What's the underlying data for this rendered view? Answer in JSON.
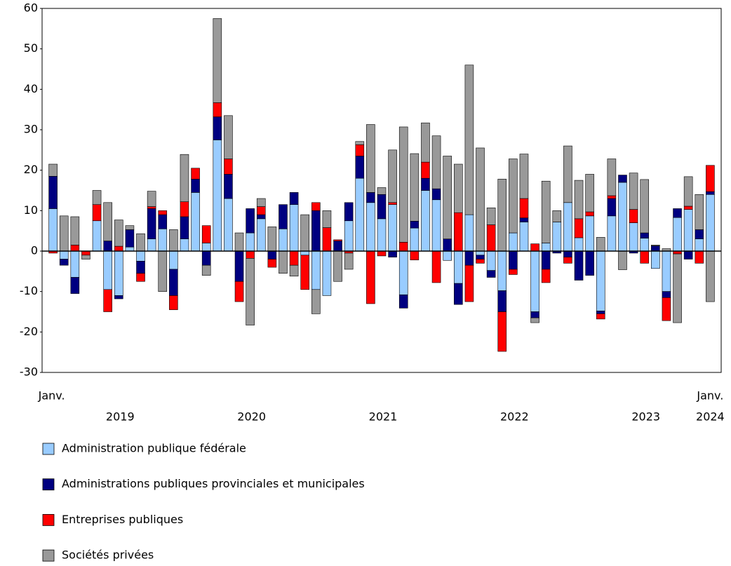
{
  "chart_data": {
    "type": "bar",
    "stacked": true,
    "categories": [
      "Janv.",
      null,
      null,
      null,
      null,
      null,
      null,
      null,
      null,
      null,
      null,
      null,
      null,
      null,
      null,
      null,
      null,
      null,
      null,
      null,
      null,
      null,
      null,
      null,
      null,
      null,
      null,
      null,
      null,
      null,
      null,
      null,
      null,
      null,
      null,
      null,
      null,
      null,
      null,
      null,
      null,
      null,
      null,
      null,
      null,
      null,
      null,
      null,
      null,
      null,
      null,
      null,
      null,
      null,
      null,
      null,
      null,
      null,
      null,
      null,
      "Janv."
    ],
    "year_labels": [
      "2019",
      "2020",
      "2021",
      "2022",
      "2023",
      "2024"
    ],
    "ylim": [
      -30,
      60
    ],
    "yticks": [
      -30,
      -20,
      -10,
      0,
      10,
      20,
      30,
      40,
      50,
      60
    ],
    "series": [
      {
        "name": "Administration publique fédérale",
        "color": "#99ccff",
        "values": [
          10.5,
          -2,
          -6.5,
          0,
          7.5,
          -9.5,
          -11,
          1,
          -2.5,
          3,
          5.5,
          -4.5,
          3,
          14.5,
          2,
          27.5,
          13,
          0,
          4.5,
          8,
          0,
          5.5,
          11.5,
          -1,
          -9.5,
          -11,
          0,
          7.5,
          18,
          12,
          8,
          11.5,
          -10.8,
          5.7,
          15,
          12.7,
          -2.3,
          -8,
          9,
          -1,
          -4.8,
          -9.8,
          4.5,
          7.2,
          -15,
          2,
          7.2,
          12,
          3.3,
          8.7,
          -14.8,
          8.7,
          17,
          7,
          3.2,
          -4.3,
          -10,
          8.3,
          10.3,
          3,
          14
        ]
      },
      {
        "name": "Administrations publiques provinciales et municipales",
        "color": "#000080",
        "values": [
          8,
          -1.5,
          -4,
          0,
          0,
          2.5,
          -0.8,
          4.3,
          -3,
          7.5,
          3.5,
          -6.5,
          5.5,
          3.3,
          -3.5,
          5.7,
          6,
          -7.5,
          6,
          1,
          -2,
          6,
          3,
          0,
          10,
          0,
          2.5,
          4.5,
          5.5,
          2.5,
          6,
          -1.5,
          -3.3,
          1.7,
          3,
          2.7,
          3,
          -5.2,
          -3.5,
          -1,
          -1.7,
          -5.2,
          -4.5,
          1,
          -1.5,
          -4.5,
          -0.5,
          -1.5,
          -7.2,
          -6,
          -0.7,
          4.3,
          1.8,
          -0.5,
          1.3,
          1.3,
          -1.5,
          2.2,
          -2,
          2.3,
          0.7
        ]
      },
      {
        "name": "Entreprises publiques",
        "color": "#ff0000",
        "values": [
          -0.5,
          0,
          1.5,
          -1,
          4,
          -5.5,
          1.2,
          0,
          -2,
          0.5,
          1,
          -3.5,
          3.7,
          2.7,
          4.3,
          3.5,
          3.8,
          -5,
          -1.8,
          2,
          -2,
          0,
          -3.5,
          -8.5,
          2,
          5.8,
          0.3,
          -0.5,
          2.8,
          -13,
          -1.2,
          0.5,
          2.2,
          -2.2,
          4,
          -7.8,
          0,
          9.5,
          -9,
          -1,
          6.5,
          -9.8,
          -1.3,
          4.8,
          1.8,
          -3.3,
          0,
          -1.5,
          4.7,
          1,
          -1.3,
          0.7,
          0,
          3.3,
          -3,
          0,
          -5.7,
          -0.7,
          0.8,
          -3,
          6.5
        ]
      },
      {
        "name": "Sociétés privées",
        "color": "#999999",
        "values": [
          3,
          8.7,
          7,
          -1,
          3.5,
          9.5,
          6.5,
          1,
          4.3,
          3.8,
          -10,
          5.3,
          11.7,
          0,
          -2.5,
          20.8,
          10.7,
          4.5,
          -16.5,
          2,
          6,
          -5.5,
          -2.7,
          9,
          -6,
          4.2,
          -7.5,
          -4,
          0.8,
          16.8,
          1.7,
          13,
          28.5,
          16.7,
          9.7,
          13.1,
          20.5,
          12,
          37,
          25.5,
          4.2,
          17.8,
          18.3,
          11,
          -1.2,
          15.3,
          2.8,
          14,
          9.5,
          9.3,
          3.4,
          9.1,
          -4.6,
          9,
          13.2,
          0.2,
          0.6,
          -17,
          7.3,
          8.7,
          -12.5
        ]
      }
    ]
  }
}
